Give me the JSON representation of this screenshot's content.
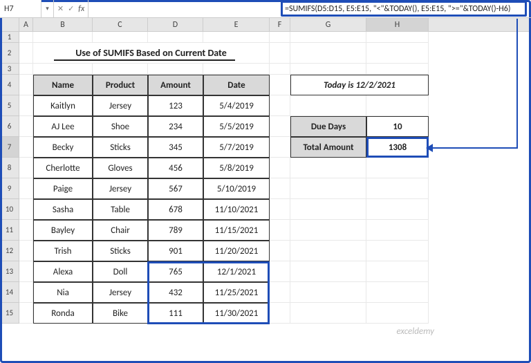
{
  "nameBox": "H7",
  "fxLabel": "fx",
  "formula": "=SUMIFS(D5:D15, E5:E15, \"<\"&TODAY(), E5:E15, \">=\"&TODAY()-H6)",
  "columns": [
    "A",
    "B",
    "C",
    "D",
    "E",
    "F",
    "G",
    "H"
  ],
  "rowNumbers": [
    "1",
    "2",
    "3",
    "4",
    "5",
    "6",
    "7",
    "8",
    "9",
    "10",
    "11",
    "12",
    "13",
    "14",
    "15"
  ],
  "title": "Use of SUMIFS Based on Current Date",
  "headers": {
    "name": "Name",
    "product": "Product",
    "amount": "Amount",
    "date": "Date"
  },
  "data": [
    {
      "name": "Kaitlyn",
      "product": "Jersey",
      "amount": "123",
      "date": "5/4/2019"
    },
    {
      "name": "AJ Lee",
      "product": "Shoe",
      "amount": "234",
      "date": "5/5/2019"
    },
    {
      "name": "Becky",
      "product": "Sticks",
      "amount": "345",
      "date": "5/7/2019"
    },
    {
      "name": "Cherlotte",
      "product": "Gloves",
      "amount": "456",
      "date": "5/8/2019"
    },
    {
      "name": "Paige",
      "product": "Jersey",
      "amount": "567",
      "date": "5/10/2019"
    },
    {
      "name": "Sasha",
      "product": "Table",
      "amount": "678",
      "date": "11/10/2021"
    },
    {
      "name": "Bayley",
      "product": "Chair",
      "amount": "789",
      "date": "11/15/2021"
    },
    {
      "name": "Trish",
      "product": "Sticks",
      "amount": "901",
      "date": "11/20/2021"
    },
    {
      "name": "Alexa",
      "product": "Doll",
      "amount": "765",
      "date": "12/1/2021"
    },
    {
      "name": "Nia",
      "product": "Jersey",
      "amount": "432",
      "date": "11/25/2021"
    },
    {
      "name": "Ronda",
      "product": "Bike",
      "amount": "111",
      "date": "11/30/2021"
    }
  ],
  "todayLabel": "Today is 12/2/2021",
  "side": {
    "dueDaysLabel": "Due Days",
    "dueDaysVal": "10",
    "totalLabel": "Total Amount",
    "totalVal": "1308"
  },
  "watermark": "exceldemy",
  "colors": {
    "highlight": "#1e4db7",
    "headerBg": "#d9d9d9",
    "gridBg": "#e6e6e6"
  }
}
